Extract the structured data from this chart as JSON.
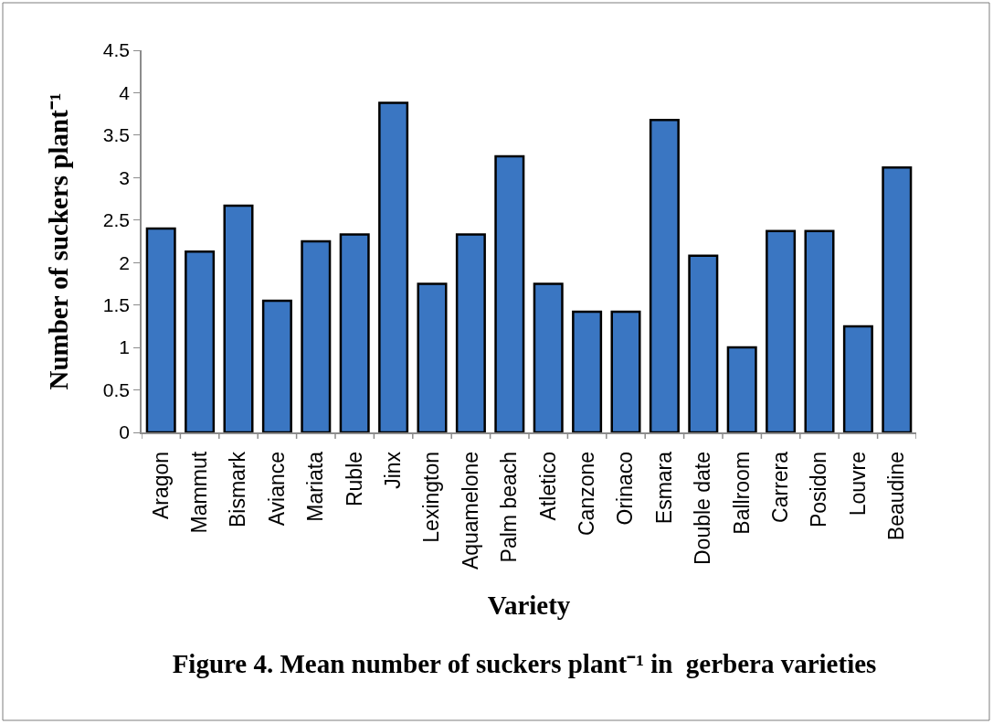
{
  "chart_data": {
    "type": "bar",
    "title": "Figure 4. Mean number of suckers plant⁻¹ in  gerbera varieties",
    "xlabel": "Variety",
    "ylabel": "Number of suckers plant⁻¹",
    "categories": [
      "Aragon",
      "Mammut",
      "Bismark",
      "Aviance",
      "Mariata",
      "Ruble",
      "Jinx",
      "Lexington",
      "Aquamelone",
      "Palm beach",
      "Atletico",
      "Canzone",
      "Orinaco",
      "Esmara",
      "Double date",
      "Ballroom",
      "Carrera",
      "Posidon",
      "Louvre",
      "Beaudine"
    ],
    "values": [
      2.4,
      2.13,
      2.67,
      1.55,
      2.25,
      2.33,
      3.88,
      1.75,
      2.33,
      3.25,
      1.75,
      1.42,
      1.42,
      3.68,
      2.08,
      1.0,
      2.37,
      2.37,
      1.25,
      3.12
    ],
    "color": "#3a76c2",
    "ylim": [
      0,
      4.5
    ],
    "yticks": [
      0,
      0.5,
      1,
      1.5,
      2,
      2.5,
      3,
      3.5,
      4,
      4.5
    ]
  }
}
